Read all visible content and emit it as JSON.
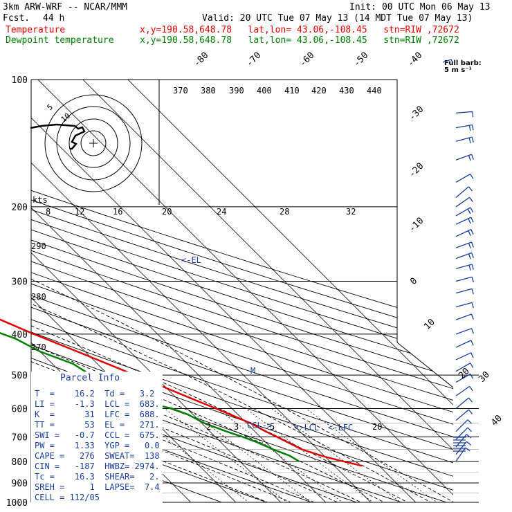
{
  "header": {
    "model": "3km ARW-WRF -- NCAR/MMM",
    "init": "Init: 00 UTC Mon 06 May 13",
    "fcst_label": "Fcst.",
    "fcst_value": "44 h",
    "valid": "Valid: 20 UTC Tue 07 May 13 (14 MDT Tue 07 May 13)",
    "temp_label": "Temperature",
    "temp_info": "x,y=190.58,648.78   lat,lon= 43.06,-108.45   stn=RIW ,72672",
    "dew_label": "Dewpoint temperature",
    "dew_info": "x,y=190.58,648.78   lat,lon= 43.06,-108.45   stn=RIW ,72672"
  },
  "colors": {
    "temperature": "#e00000",
    "dewpoint": "#008000",
    "barbs": "#1a3e9c",
    "isotherm": "#000000",
    "label": "#000000"
  },
  "chart_data": {
    "type": "line",
    "title": "3km ARW-WRF -- NCAR/MMM",
    "ylabel": "Pressure (hPa)",
    "pressure_ticks": [
      "100",
      "200",
      "300",
      "400",
      "500",
      "600",
      "700",
      "800",
      "900",
      "1000"
    ],
    "isotherm_labels": [
      "-80",
      "-70",
      "-60",
      "-50",
      "-40",
      "-30",
      "-20",
      "-10",
      "0",
      "10",
      "20",
      "30",
      "40"
    ],
    "theta_labels": [
      "370",
      "380",
      "390",
      "400",
      "410",
      "420",
      "430",
      "440",
      "290",
      "280",
      "270"
    ],
    "mixing_ratio_labels": [
      "2",
      "3",
      "5",
      "20"
    ],
    "hodograph": {
      "speed_label": "kts",
      "ring_labels": [
        "5",
        "10"
      ],
      "speed_scale_labels": [
        "8",
        "12",
        "16",
        "20",
        "24",
        "28",
        "32"
      ]
    },
    "barb_legend": "Full barb:\n5 m s⁻¹",
    "annotations": [
      "<-EL",
      "<-LCL",
      "<-LFC",
      "CCL->",
      "M"
    ],
    "series": [
      {
        "name": "Temperature",
        "pressure": [
          820,
          800,
          780,
          750,
          720,
          700,
          680,
          650,
          620,
          600,
          570,
          540,
          500,
          470,
          440,
          400,
          370,
          340,
          310,
          280,
          260,
          240,
          220,
          200,
          190,
          180,
          170,
          150,
          140,
          125,
          115,
          100
        ],
        "values": [
          16.2,
          13.0,
          9.9,
          6.5,
          4.8,
          3.7,
          2.4,
          0.9,
          -1.7,
          -3.5,
          -6.6,
          -9.7,
          -14.1,
          -17.8,
          -21.7,
          -27.5,
          -31.7,
          -36.6,
          -41.5,
          -46.5,
          -50.6,
          -54.2,
          -56.3,
          -56.5,
          -54.8,
          -54.0,
          -53.3,
          -52.5,
          -52.6,
          -53.3,
          -53.4,
          -53.6
        ]
      },
      {
        "name": "Dewpoint temperature",
        "pressure": [
          800,
          775,
          750,
          720,
          700,
          680,
          650,
          620,
          600,
          580,
          560,
          540,
          520,
          500,
          470,
          440,
          410,
          380,
          350,
          320,
          300,
          280,
          260,
          240,
          220,
          200,
          180,
          160,
          150,
          140,
          130,
          120,
          110,
          100
        ],
        "values": [
          3.2,
          2.3,
          0.1,
          -2.0,
          -3.9,
          -6.3,
          -9.4,
          -11.1,
          -13.3,
          -18.2,
          -21.8,
          -22.5,
          -22.0,
          -23.9,
          -25.4,
          -30.0,
          -32.6,
          -38.1,
          -43.3,
          -50.0,
          -56.6,
          -64.5,
          -67.2,
          -69.3,
          -71.9,
          -73.5,
          -73.6,
          -71.5,
          -71.9,
          -70.6,
          -69.9,
          -68.0,
          -68.3,
          -69.6
        ]
      }
    ],
    "wind_barbs": [
      {
        "p": 120,
        "speed": 8,
        "dir": 265
      },
      {
        "p": 130,
        "speed": 12,
        "dir": 260
      },
      {
        "p": 140,
        "speed": 12,
        "dir": 255
      },
      {
        "p": 155,
        "speed": 10,
        "dir": 250
      },
      {
        "p": 175,
        "speed": 8,
        "dir": 240
      },
      {
        "p": 190,
        "speed": 7,
        "dir": 230
      },
      {
        "p": 200,
        "speed": 8,
        "dir": 235
      },
      {
        "p": 210,
        "speed": 10,
        "dir": 240
      },
      {
        "p": 220,
        "speed": 12,
        "dir": 245
      },
      {
        "p": 235,
        "speed": 12,
        "dir": 245
      },
      {
        "p": 250,
        "speed": 12,
        "dir": 250
      },
      {
        "p": 265,
        "speed": 10,
        "dir": 250
      },
      {
        "p": 280,
        "speed": 10,
        "dir": 255
      },
      {
        "p": 300,
        "speed": 8,
        "dir": 255
      },
      {
        "p": 320,
        "speed": 8,
        "dir": 255
      },
      {
        "p": 345,
        "speed": 8,
        "dir": 255
      },
      {
        "p": 370,
        "speed": 7,
        "dir": 250
      },
      {
        "p": 400,
        "speed": 6,
        "dir": 250
      },
      {
        "p": 430,
        "speed": 6,
        "dir": 245
      },
      {
        "p": 460,
        "speed": 6,
        "dir": 245
      },
      {
        "p": 490,
        "speed": 5,
        "dir": 240
      },
      {
        "p": 520,
        "speed": 5,
        "dir": 240
      },
      {
        "p": 560,
        "speed": 5,
        "dir": 235
      },
      {
        "p": 600,
        "speed": 5,
        "dir": 230
      },
      {
        "p": 640,
        "speed": 5,
        "dir": 230
      },
      {
        "p": 680,
        "speed": 5,
        "dir": 225
      },
      {
        "p": 710,
        "speed": 6,
        "dir": 225
      },
      {
        "p": 740,
        "speed": 6,
        "dir": 220
      },
      {
        "p": 770,
        "speed": 7,
        "dir": 220
      },
      {
        "p": 800,
        "speed": 7,
        "dir": 215
      }
    ]
  },
  "parcel_info": {
    "title": "Parcel Info",
    "rows": [
      "T  =    16.2  Td =   3.2",
      "LI =    -1.3  LCL =  683.",
      "K  =      31  LFC =  688.",
      "TT =      53  EL =   271.",
      "SWI =   -0.7  CCL =  675.",
      "PW =    1.33  YGP =   0.0",
      "CAPE =   276  SWEAT=  138",
      "CIN =   -187  HWBZ= 2974.",
      "Tc =    16.3  SHEAR=   2.",
      "SREH =     1  LAPSE=  7.4",
      "CELL = 112/05"
    ]
  }
}
